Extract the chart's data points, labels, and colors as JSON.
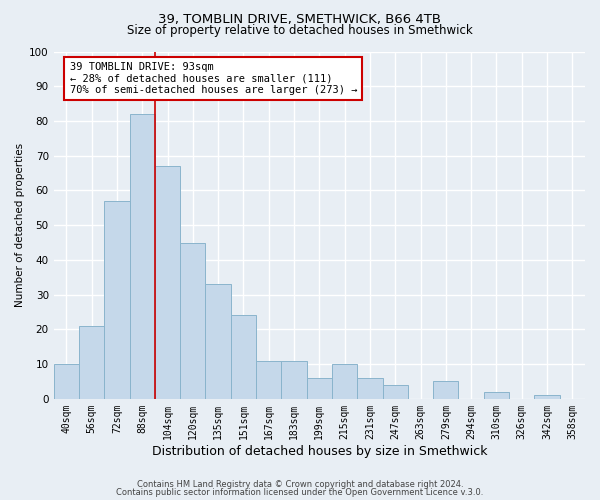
{
  "title_line1": "39, TOMBLIN DRIVE, SMETHWICK, B66 4TB",
  "title_line2": "Size of property relative to detached houses in Smethwick",
  "xlabel": "Distribution of detached houses by size in Smethwick",
  "ylabel": "Number of detached properties",
  "bin_labels": [
    "40sqm",
    "56sqm",
    "72sqm",
    "88sqm",
    "104sqm",
    "120sqm",
    "135sqm",
    "151sqm",
    "167sqm",
    "183sqm",
    "199sqm",
    "215sqm",
    "231sqm",
    "247sqm",
    "263sqm",
    "279sqm",
    "294sqm",
    "310sqm",
    "326sqm",
    "342sqm",
    "358sqm"
  ],
  "bar_heights": [
    10,
    21,
    57,
    82,
    67,
    45,
    33,
    24,
    11,
    11,
    6,
    10,
    6,
    4,
    0,
    5,
    0,
    2,
    0,
    1,
    0
  ],
  "bar_color": "#c5d8ea",
  "bar_edge_color": "#8ab4cc",
  "vline_x_index": 3.5,
  "vline_color": "#cc0000",
  "annotation_text": "39 TOMBLIN DRIVE: 93sqm\n← 28% of detached houses are smaller (111)\n70% of semi-detached houses are larger (273) →",
  "annotation_box_color": "white",
  "annotation_box_edge": "#cc0000",
  "ylim": [
    0,
    100
  ],
  "yticks": [
    0,
    10,
    20,
    30,
    40,
    50,
    60,
    70,
    80,
    90,
    100
  ],
  "footer_line1": "Contains HM Land Registry data © Crown copyright and database right 2024.",
  "footer_line2": "Contains public sector information licensed under the Open Government Licence v.3.0.",
  "bg_color": "#e8eef4",
  "plot_bg_color": "#e8eef4",
  "grid_color": "white",
  "title1_fontsize": 9.5,
  "title2_fontsize": 8.5,
  "xlabel_fontsize": 9,
  "ylabel_fontsize": 7.5,
  "tick_fontsize": 7,
  "annot_fontsize": 7.5,
  "footer_fontsize": 6
}
